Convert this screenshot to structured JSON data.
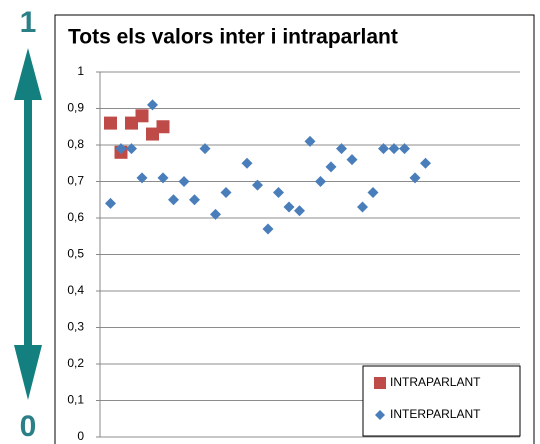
{
  "chart_data": {
    "type": "scatter",
    "title": "Tots els valors inter i intraparlant",
    "arrow_top": 1,
    "arrow_bottom": 0,
    "xlim": [
      0,
      40
    ],
    "ylim": [
      0,
      1
    ],
    "yticks": [
      0,
      {
        "value": 0.1,
        "label": "0,1"
      },
      {
        "value": 0.2,
        "label": "0,2"
      },
      {
        "value": 0.3,
        "label": "0,3"
      },
      {
        "value": 0.4,
        "label": "0,4"
      },
      {
        "value": 0.5,
        "label": "0,5"
      },
      {
        "value": 0.6,
        "label": "0,6"
      },
      {
        "value": 0.7,
        "label": "0,7"
      },
      {
        "value": 0.8,
        "label": "0,8"
      },
      {
        "value": 0.9,
        "label": "0,9"
      },
      1
    ],
    "grid": true,
    "legend": "bottom-right",
    "series": [
      {
        "name": "INTRAPARLANT",
        "color": "#be4b48",
        "marker": "square",
        "x": [
          1,
          2,
          3,
          4,
          5,
          6
        ],
        "values": [
          0.86,
          0.78,
          0.86,
          0.88,
          0.83,
          0.85
        ]
      },
      {
        "name": "INTERPARLANT",
        "color": "#4a7ebb",
        "marker": "diamond",
        "x": [
          1,
          2,
          3,
          4,
          5,
          6,
          7,
          8,
          9,
          10,
          11,
          12,
          14,
          15,
          16,
          17,
          18,
          19,
          20,
          21,
          22,
          23,
          24,
          25,
          26,
          27,
          28,
          29,
          30,
          31
        ],
        "values": [
          0.64,
          0.79,
          0.79,
          0.71,
          0.91,
          0.71,
          0.65,
          0.7,
          0.65,
          0.79,
          0.61,
          0.67,
          0.75,
          0.69,
          0.57,
          0.67,
          0.63,
          0.62,
          0.81,
          0.7,
          0.74,
          0.79,
          0.76,
          0.63,
          0.67,
          0.79,
          0.79,
          0.79,
          0.71,
          0.75
        ]
      }
    ]
  }
}
